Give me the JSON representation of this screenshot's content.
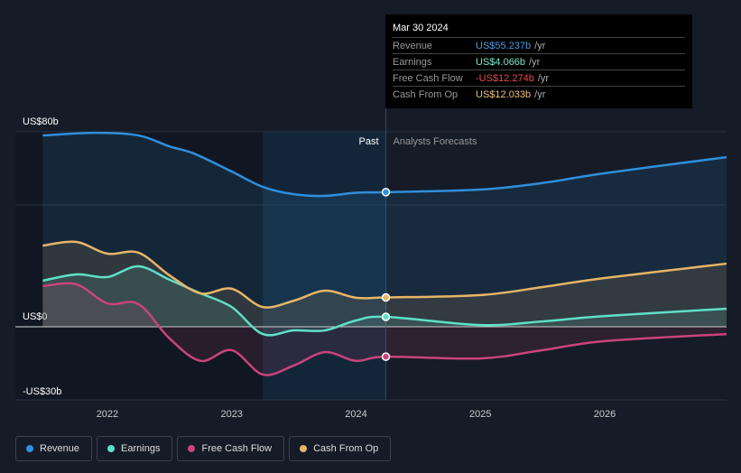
{
  "tooltip": {
    "date": "Mar 30 2024",
    "rows": [
      {
        "label": "Revenue",
        "value": "US$55.237b",
        "unit": "/yr",
        "color": "#4a9be0"
      },
      {
        "label": "Earnings",
        "value": "US$4.066b",
        "unit": "/yr",
        "color": "#7de8d0"
      },
      {
        "label": "Free Cash Flow",
        "value": "-US$12.274b",
        "unit": "/yr",
        "color": "#e84c4c"
      },
      {
        "label": "Cash From Op",
        "value": "US$12.033b",
        "unit": "/yr",
        "color": "#eac27a"
      }
    ]
  },
  "chart_data": {
    "type": "line",
    "title": "",
    "ylim": [
      -30,
      80
    ],
    "xlim": [
      2021.26,
      2026.98
    ],
    "y_tick_labels": [
      {
        "v": 80,
        "t": "US$80b"
      },
      {
        "v": 0,
        "t": "US$0"
      },
      {
        "v": -30,
        "t": "-US$30b"
      }
    ],
    "x_tick_labels": [
      {
        "v": 2022,
        "t": "2022"
      },
      {
        "v": 2023,
        "t": "2023"
      },
      {
        "v": 2024,
        "t": "2024"
      },
      {
        "v": 2025,
        "t": "2025"
      },
      {
        "v": 2026,
        "t": "2026"
      }
    ],
    "past_label": "Past",
    "forecast_label": "Analysts Forecasts",
    "divider_x": 2024.24,
    "highlight_start": 2023.25,
    "series": [
      {
        "name": "Revenue",
        "color": "#2f8fdc",
        "x": [
          2021.48,
          2021.9,
          2022.25,
          2022.5,
          2022.7,
          2023,
          2023.25,
          2023.5,
          2023.75,
          2024,
          2024.24,
          2025,
          2025.5,
          2026,
          2026.98
        ],
        "y": [
          78.5,
          79.6,
          78.5,
          74,
          71,
          63.7,
          57.4,
          54.4,
          53.7,
          55,
          55.24,
          56.3,
          59,
          63,
          69.6
        ]
      },
      {
        "name": "Earnings",
        "color": "#5fe0c8",
        "x": [
          2021.48,
          2021.75,
          2022,
          2022.25,
          2022.5,
          2022.75,
          2023,
          2023.25,
          2023.5,
          2023.75,
          2024,
          2024.24,
          2025,
          2025.5,
          2026,
          2026.98
        ],
        "y": [
          18.9,
          21.5,
          20.4,
          24.8,
          19.3,
          13.7,
          8.1,
          -3,
          -1.5,
          -1.5,
          2.6,
          4.07,
          0.7,
          2.2,
          4.4,
          7.4
        ]
      },
      {
        "name": "Free Cash Flow",
        "color": "#c9447a",
        "x": [
          2021.48,
          2021.75,
          2022,
          2022.25,
          2022.5,
          2022.75,
          2023,
          2023.25,
          2023.5,
          2023.75,
          2024,
          2024.24,
          2025,
          2025.5,
          2026,
          2026.98
        ],
        "y": [
          16.7,
          17.4,
          9.6,
          9.3,
          -4.8,
          -14,
          -9.6,
          -19.6,
          -15.9,
          -10.4,
          -14,
          -12.27,
          -13,
          -9.6,
          -5.9,
          -3
        ]
      },
      {
        "name": "Cash From Op",
        "color": "#e6b566",
        "x": [
          2021.48,
          2021.75,
          2022,
          2022.25,
          2022.5,
          2022.75,
          2023,
          2023.25,
          2023.5,
          2023.75,
          2024,
          2024.24,
          2025,
          2025.5,
          2026,
          2026.98
        ],
        "y": [
          33.3,
          34.8,
          30,
          30.4,
          21.1,
          13.7,
          15.6,
          8.1,
          10.7,
          14.8,
          11.9,
          12.03,
          13,
          16.3,
          20,
          25.9
        ]
      }
    ]
  }
}
